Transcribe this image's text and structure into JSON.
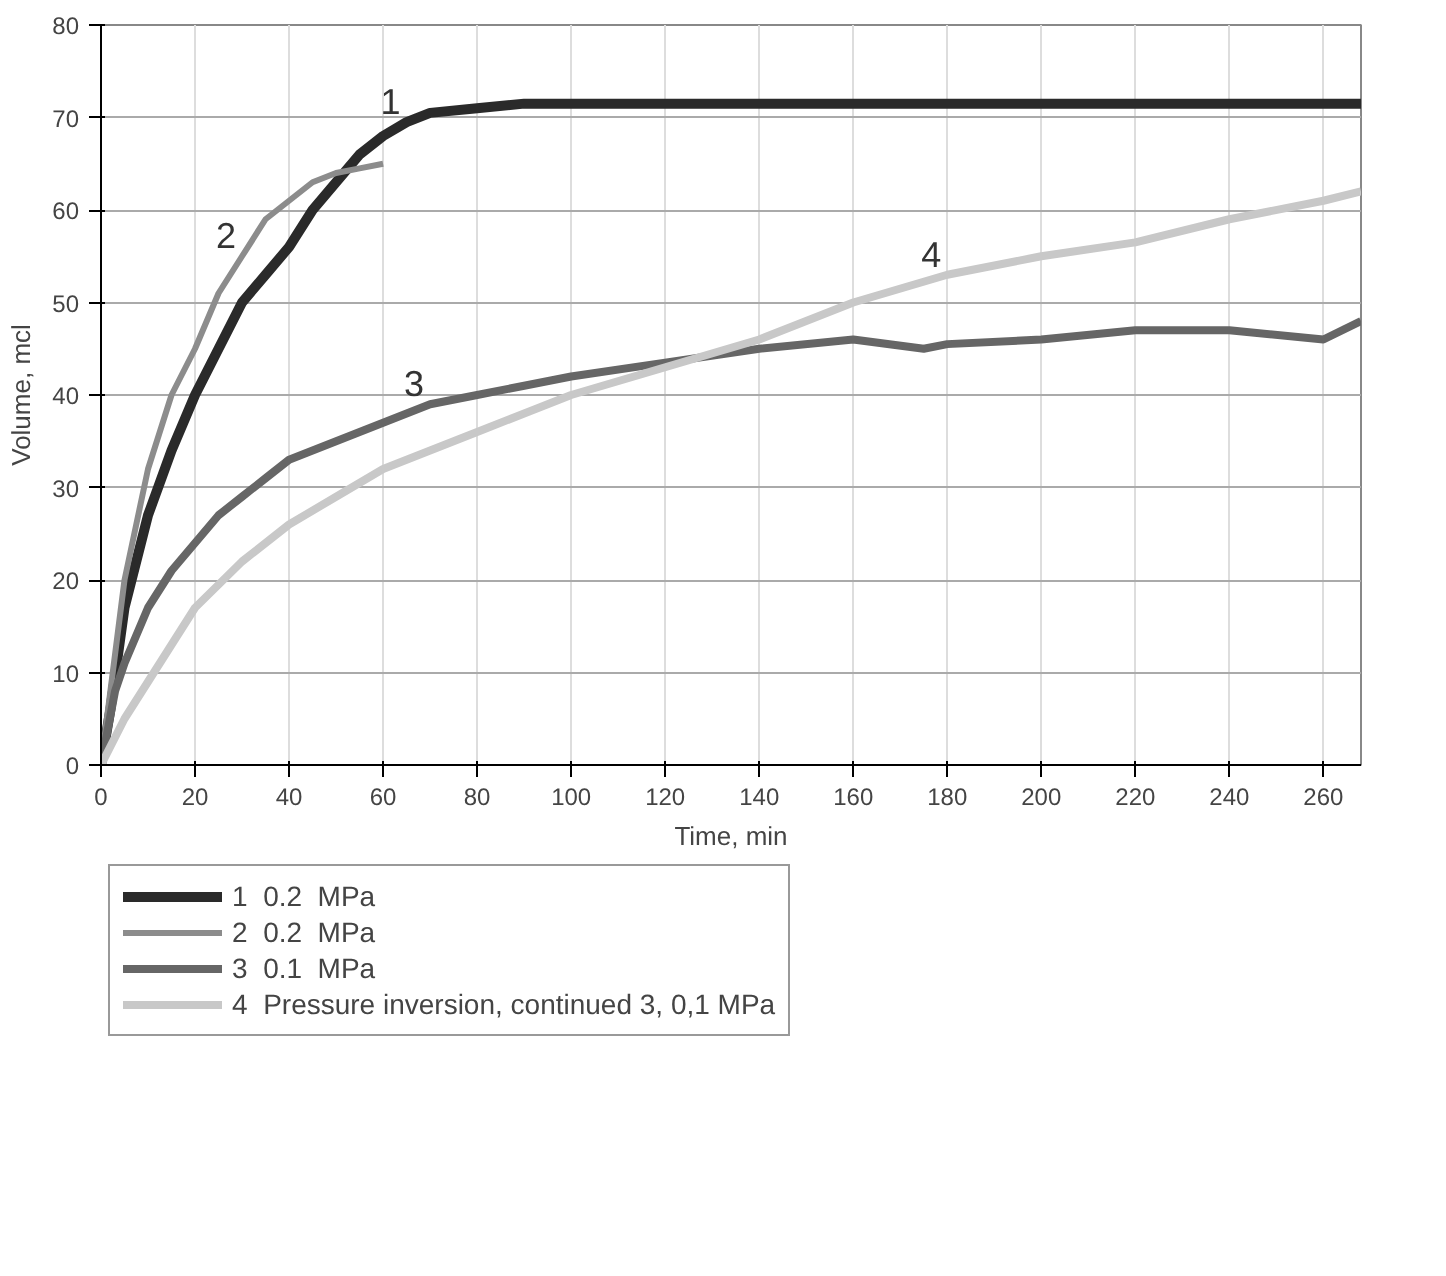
{
  "chart_data": {
    "type": "line",
    "xlabel": "Time, min",
    "ylabel": "Volume, mcl",
    "xlim": [
      0,
      268
    ],
    "ylim": [
      0,
      80
    ],
    "xticks": [
      0,
      20,
      40,
      60,
      80,
      100,
      120,
      140,
      160,
      180,
      200,
      220,
      240,
      260
    ],
    "yticks": [
      0,
      10,
      20,
      30,
      40,
      50,
      60,
      70,
      80
    ],
    "grid": true,
    "legend": "bottom",
    "marker": "none",
    "line_style": "solid",
    "series": [
      {
        "name": "1  0.2  MPa",
        "color": "#2a2a2a",
        "x": [
          0,
          2,
          5,
          10,
          15,
          20,
          25,
          30,
          35,
          40,
          45,
          50,
          55,
          60,
          65,
          70,
          80,
          90,
          268
        ],
        "values": [
          0,
          6,
          17,
          27,
          34,
          40,
          45,
          50,
          53,
          56,
          60,
          63,
          66,
          68,
          69.5,
          70.5,
          71,
          71.5,
          71.5
        ]
      },
      {
        "name": "2  0.2  MPa",
        "color": "#8c8c8c",
        "x": [
          0,
          2,
          5,
          10,
          15,
          20,
          25,
          30,
          35,
          40,
          45,
          50,
          55,
          60
        ],
        "values": [
          0,
          8,
          20,
          32,
          40,
          45,
          51,
          55,
          59,
          61,
          63,
          64,
          64.5,
          65
        ]
      },
      {
        "name": "3  0.1  MPa",
        "color": "#666666",
        "x": [
          0,
          3,
          5,
          10,
          15,
          20,
          25,
          30,
          35,
          40,
          50,
          60,
          70,
          80,
          90,
          100,
          120,
          140,
          160,
          175,
          180,
          200,
          220,
          240,
          260,
          268
        ],
        "values": [
          0,
          8,
          11,
          17,
          21,
          24,
          27,
          29,
          31,
          33,
          35,
          37,
          39,
          40,
          41,
          42,
          43.5,
          45,
          46,
          45,
          45.5,
          46,
          47,
          47,
          46,
          48
        ]
      },
      {
        "name": "4  Pressure inversion, continued 3, 0,1 MPa",
        "color": "#c8c8c8",
        "x": [
          0,
          5,
          10,
          15,
          20,
          30,
          40,
          50,
          60,
          70,
          80,
          90,
          100,
          120,
          140,
          160,
          180,
          200,
          220,
          240,
          260,
          268
        ],
        "values": [
          0,
          5,
          9,
          13,
          17,
          22,
          26,
          29,
          32,
          34,
          36,
          38,
          40,
          43,
          46,
          50,
          53,
          55,
          56.5,
          59,
          61,
          62
        ]
      }
    ],
    "annotations": [
      {
        "text": "1",
        "x": 65,
        "y": 69.5
      },
      {
        "text": "2",
        "x": 30,
        "y": 55
      },
      {
        "text": "3",
        "x": 70,
        "y": 39
      },
      {
        "text": "4",
        "x": 180,
        "y": 53
      }
    ]
  }
}
